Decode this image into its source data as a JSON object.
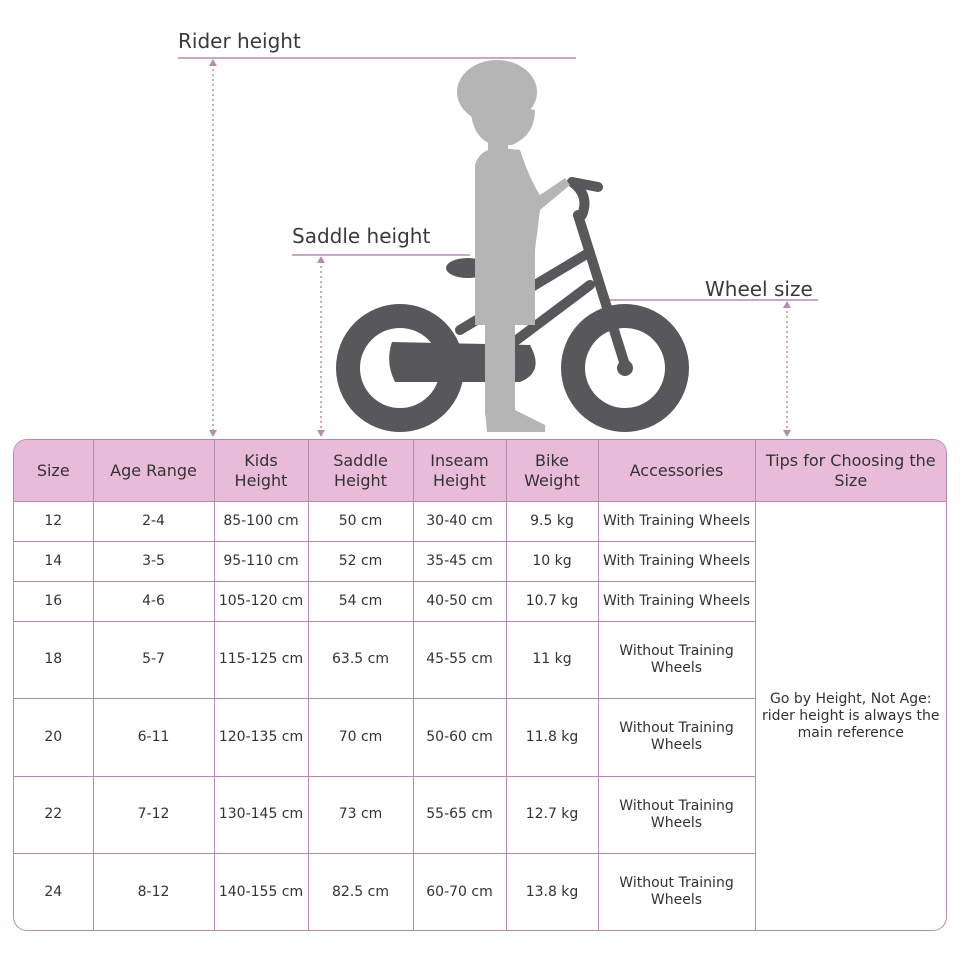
{
  "labels": {
    "rider_height": "Rider height",
    "saddle_height": "Saddle height",
    "wheel_size": "Wheel size"
  },
  "colors": {
    "header_bg": "#e8bcd9",
    "border": "#b98ab0",
    "bike": "#58585a",
    "child": "#b5b5b5"
  },
  "table": {
    "headers": [
      "Size",
      "Age Range",
      "Kids Height",
      "Saddle Height",
      "Inseam Height",
      "Bike Weight",
      "Accessories",
      "Tips for Choosing the Size"
    ],
    "rows": [
      [
        "12",
        "2-4",
        "85-100 cm",
        "50 cm",
        "30-40 cm",
        "9.5 kg",
        "With Training Wheels"
      ],
      [
        "14",
        "3-5",
        "95-110 cm",
        "52 cm",
        "35-45 cm",
        "10 kg",
        "With Training Wheels"
      ],
      [
        "16",
        "4-6",
        "105-120 cm",
        "54 cm",
        "40-50 cm",
        "10.7 kg",
        "With Training Wheels"
      ],
      [
        "18",
        "5-7",
        "115-125 cm",
        "63.5 cm",
        "45-55 cm",
        "11 kg",
        "Without Training Wheels"
      ],
      [
        "20",
        "6-11",
        "120-135 cm",
        "70 cm",
        "50-60 cm",
        "11.8 kg",
        "Without Training Wheels"
      ],
      [
        "22",
        "7-12",
        "130-145 cm",
        "73 cm",
        "55-65 cm",
        "12.7 kg",
        "Without Training Wheels"
      ],
      [
        "24",
        "8-12",
        "140-155 cm",
        "82.5 cm",
        "60-70 cm",
        "13.8 kg",
        "Without Training Wheels"
      ]
    ],
    "tip": "Go by Height, Not Age: rider height is always the main reference"
  }
}
